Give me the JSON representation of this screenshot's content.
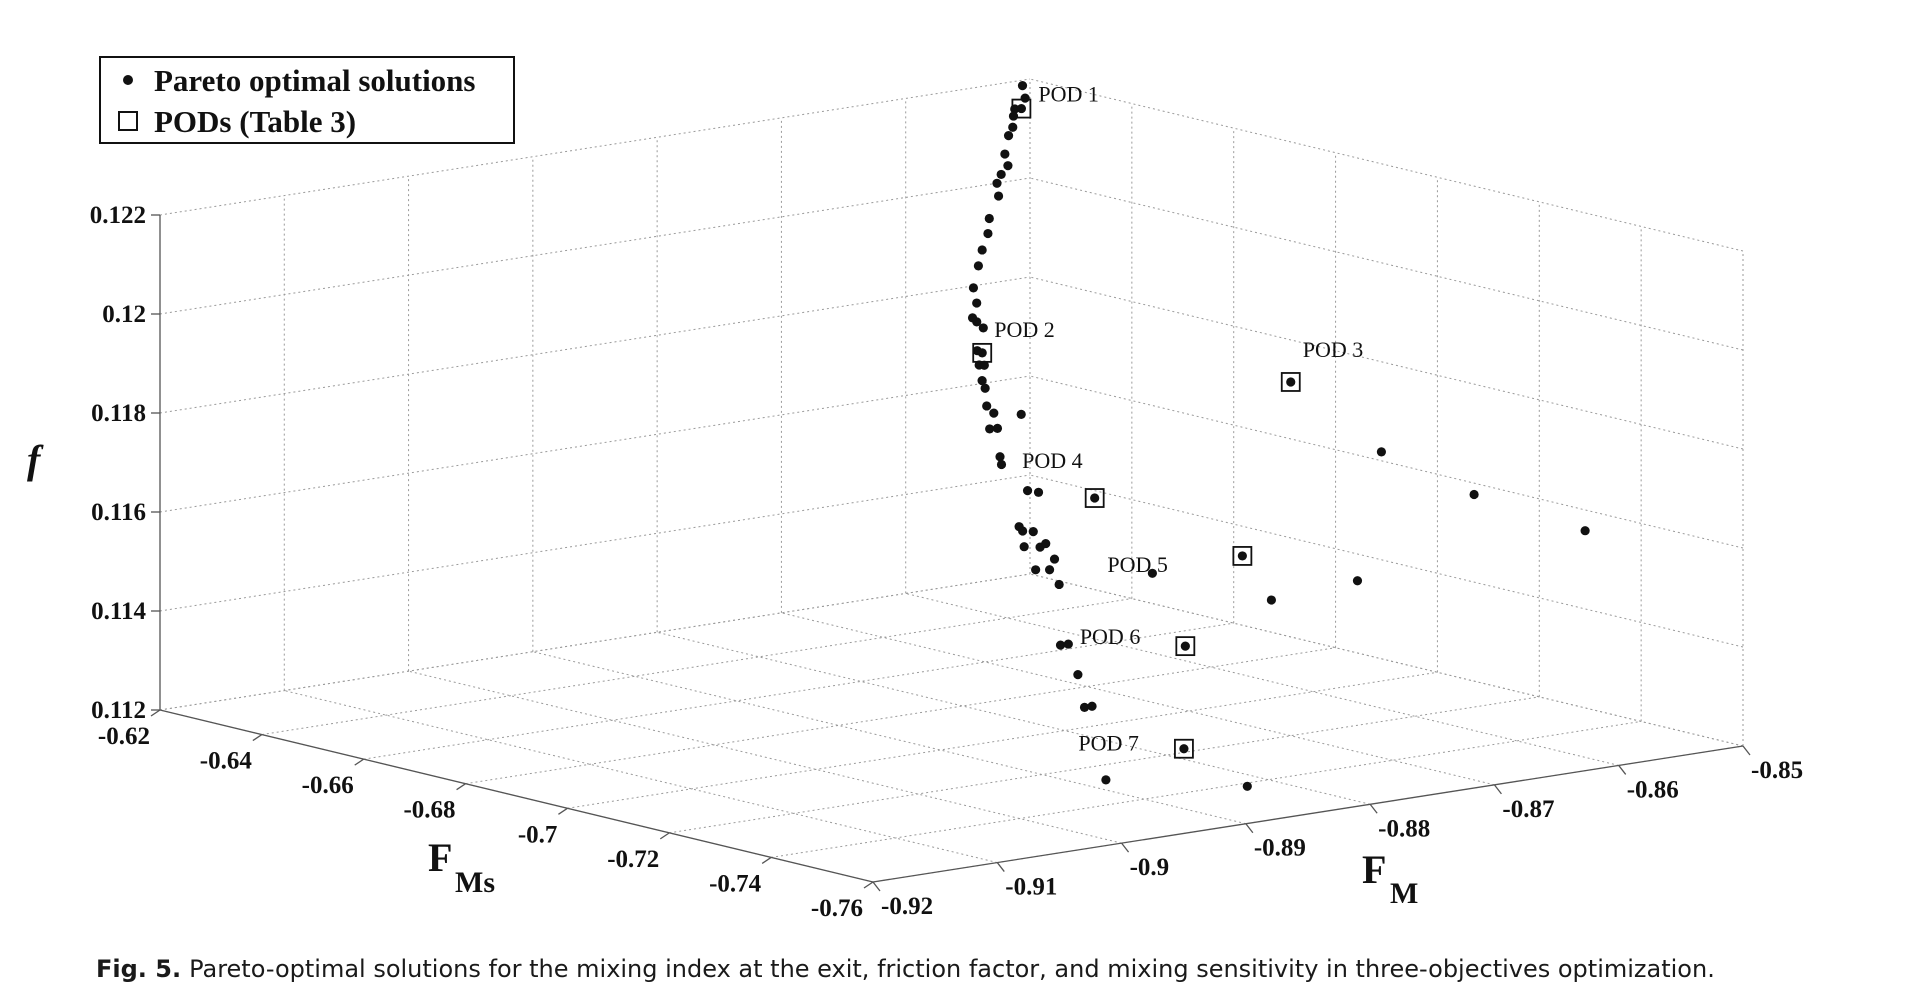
{
  "chart_data": {
    "type": "scatter",
    "title": "",
    "xlabel": "F_M",
    "ylabel": "F_Ms",
    "zlabel": "f",
    "x_label": {
      "main": "F",
      "sub": "M"
    },
    "y_label": {
      "main": "F",
      "sub": "Ms"
    },
    "z_label": "f",
    "xlim": [
      -0.92,
      -0.85
    ],
    "ylim": [
      -0.76,
      -0.62
    ],
    "zlim": [
      0.112,
      0.122
    ],
    "x_ticks": [
      "-0.85",
      "-0.86",
      "-0.87",
      "-0.88",
      "-0.89",
      "-0.9",
      "-0.91",
      "-0.92"
    ],
    "y_ticks": [
      "-0.62",
      "-0.64",
      "-0.66",
      "-0.68",
      "-0.7",
      "-0.72",
      "-0.74",
      "-0.76"
    ],
    "z_ticks": [
      "0.112",
      "0.114",
      "0.116",
      "0.118",
      "0.12",
      "0.122"
    ],
    "grid": true,
    "legend": {
      "position": "top-left",
      "entries": [
        {
          "marker": "dot",
          "label": "Pareto optimal solutions"
        },
        {
          "marker": "square",
          "label": "PODs (Table 3)"
        }
      ]
    },
    "series": [
      {
        "name": "Pareto optimal solutions",
        "points": [
          {
            "FM": -0.8515,
            "FMs": -0.6227,
            "f": 0.12174
          },
          {
            "FM": -0.8534,
            "FMs": -0.6253,
            "f": 0.12166
          },
          {
            "FM": -0.8513,
            "FMs": -0.6217,
            "f": 0.12196
          },
          {
            "FM": -0.8535,
            "FMs": -0.6253,
            "f": 0.12152
          },
          {
            "FM": -0.8536,
            "FMs": -0.6254,
            "f": 0.1213
          },
          {
            "FM": -0.8557,
            "FMs": -0.6297,
            "f": 0.12132
          },
          {
            "FM": -0.8578,
            "FMs": -0.6341,
            "f": 0.12114
          },
          {
            "FM": -0.8578,
            "FMs": -0.6347,
            "f": 0.12092
          },
          {
            "FM": -0.8599,
            "FMs": -0.6385,
            "f": 0.12092
          },
          {
            "FM": -0.862,
            "FMs": -0.6428,
            "f": 0.12093
          },
          {
            "FM": -0.8622,
            "FMs": -0.6436,
            "f": 0.1207
          },
          {
            "FM": -0.8652,
            "FMs": -0.6491,
            "f": 0.1205
          },
          {
            "FM": -0.8658,
            "FMs": -0.6503,
            "f": 0.12025
          },
          {
            "FM": -0.8677,
            "FMs": -0.6538,
            "f": 0.12008
          },
          {
            "FM": -0.8696,
            "FMs": -0.6577,
            "f": 0.11993
          },
          {
            "FM": -0.8725,
            "FMs": -0.6638,
            "f": 0.11975
          },
          {
            "FM": -0.8724,
            "FMs": -0.6642,
            "f": 0.11945
          },
          {
            "FM": -0.8726,
            "FMs": -0.6647,
            "f": 0.11909
          },
          {
            "FM": -0.8738,
            "FMs": -0.6668,
            "f": 0.11927
          },
          {
            "FM": -0.8706,
            "FMs": -0.6611,
            "f": 0.1188
          },
          {
            "FM": -0.874,
            "FMs": -0.6682,
            "f": 0.11865
          },
          {
            "FM": -0.8738,
            "FMs": -0.6681,
            "f": 0.11835
          },
          {
            "FM": -0.8734,
            "FMs": -0.6677,
            "f": 0.11801
          },
          {
            "FM": -0.8715,
            "FMs": -0.6635,
            "f": 0.11814
          },
          {
            "FM": -0.8725,
            "FMs": -0.6661,
            "f": 0.11778
          },
          {
            "FM": -0.8718,
            "FMs": -0.6647,
            "f": 0.11736
          },
          {
            "FM": -0.8723,
            "FMs": -0.6665,
            "f": 0.11696
          },
          {
            "FM": -0.87,
            "FMs": -0.6617,
            "f": 0.11707
          },
          {
            "FM": -0.8695,
            "FMs": -0.6612,
            "f": 0.11673
          },
          {
            "FM": -0.8695,
            "FMs": -0.6617,
            "f": 0.11617
          },
          {
            "FM": -0.8702,
            "FMs": -0.6637,
            "f": 0.11609
          },
          {
            "FM": -0.863,
            "FMs": -0.65,
            "f": 0.11648
          },
          {
            "FM": -0.8638,
            "FMs": -0.6532,
            "f": 0.11505
          },
          {
            "FM": -0.8678,
            "FMs": -0.6613,
            "f": 0.11468
          },
          {
            "FM": -0.866,
            "FMs": -0.6576,
            "f": 0.11443
          },
          {
            "FM": -0.866,
            "FMs": -0.6579,
            "f": 0.11412
          },
          {
            "FM": -0.8596,
            "FMs": -0.6451,
            "f": 0.11465
          },
          {
            "FM": -0.8624,
            "FMs": -0.6509,
            "f": 0.11411
          },
          {
            "FM": -0.8627,
            "FMs": -0.6521,
            "f": 0.11338
          },
          {
            "FM": -0.8605,
            "FMs": -0.6476,
            "f": 0.11364
          },
          {
            "FM": -0.8582,
            "FMs": -0.6431,
            "f": 0.11351
          },
          {
            "FM": -0.8583,
            "FMs": -0.6441,
            "f": 0.11301
          },
          {
            "FM": -0.8561,
            "FMs": -0.6397,
            "f": 0.11303
          },
          {
            "FM": -0.8554,
            "FMs": -0.6389,
            "f": 0.11247
          },
          {
            "FM": -0.8575,
            "FMs": -0.6443,
            "f": 0.11146
          },
          {
            "FM": -0.8554,
            "FMs": -0.6407,
            "f": 0.11131
          },
          {
            "FM": -0.8534,
            "FMs": -0.6377,
            "f": 0.11054
          },
          {
            "FM": -0.8534,
            "FMs": -0.639,
            "f": 0.10991
          },
          {
            "FM": -0.8514,
            "FMs": -0.6356,
            "f": 0.10977
          },
          {
            "FM": -0.8509,
            "FMs": -0.6371,
            "f": 0.1083
          },
          {
            "FM": -0.85,
            "FMs": -0.689,
            "f": 0.11618
          },
          {
            "FM": -0.85,
            "FMs": -0.7072,
            "f": 0.11577
          },
          {
            "FM": -0.85,
            "FMs": -0.729,
            "f": 0.11558
          },
          {
            "FM": -0.85,
            "FMs": -0.6843,
            "f": 0.11346
          },
          {
            "FM": -0.85,
            "FMs": -0.6674,
            "f": 0.11265
          },
          {
            "FM": -0.8522,
            "FMs": -0.6494,
            "f": 0.11283
          },
          {
            "FM": -0.8503,
            "FMs": -0.6634,
            "f": 0.1088
          }
        ]
      },
      {
        "name": "PODs (Table 3)",
        "points": [
          {
            "label": "POD 1",
            "FM": -0.8527,
            "FMs": -0.6249,
            "f": 0.12163
          },
          {
            "label": "POD 2",
            "FM": -0.8738,
            "FMs": -0.6687,
            "f": 0.11861
          },
          {
            "label": "POD 3",
            "FM": -0.85,
            "FMs": -0.6712,
            "f": 0.11715
          },
          {
            "label": "POD 4",
            "FM": -0.85,
            "FMs": -0.6327,
            "f": 0.11385
          },
          {
            "label": "POD 5",
            "FM": -0.85,
            "FMs": -0.6617,
            "f": 0.1134
          },
          {
            "label": "POD 6",
            "FM": -0.85,
            "FMs": -0.6505,
            "f": 0.1113
          },
          {
            "label": "POD 7",
            "FM": -0.8504,
            "FMs": -0.6512,
            "f": 0.10926
          }
        ]
      }
    ]
  },
  "caption": {
    "label": "Fig. 5.",
    "text": "Pareto-optimal solutions for the mixing index at the exit, friction factor, and mixing sensitivity in three-objectives optimization."
  }
}
